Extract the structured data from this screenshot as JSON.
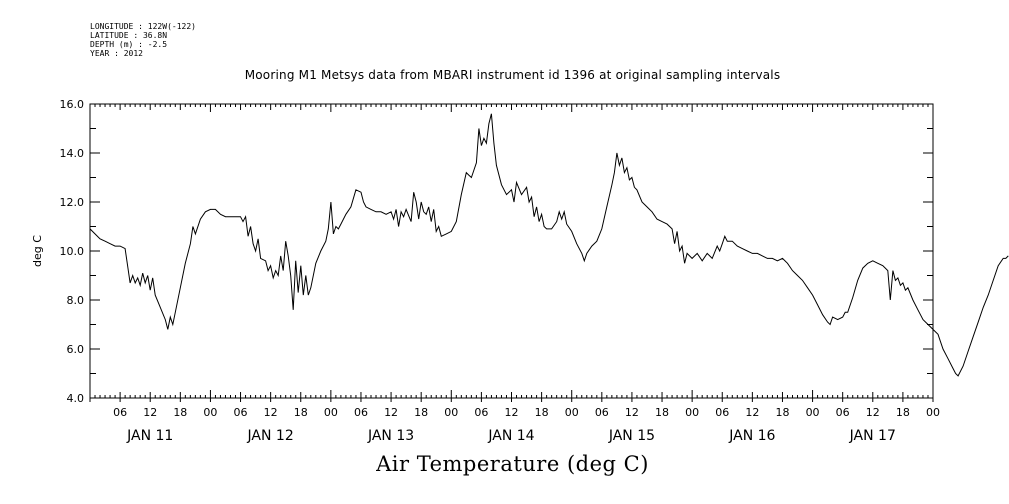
{
  "meta": {
    "longitude": "LONGITUDE : 122W(-122)",
    "latitude": "LATITUDE : 36.8N",
    "depth": "DEPTH (m) : -2.5",
    "year": "YEAR : 2012"
  },
  "chart_data": {
    "type": "line",
    "title": "Mooring M1 Metsys data from MBARI instrument id 1396 at original sampling intervals",
    "xlabel": "Air Temperature (deg C)",
    "ylabel": "deg C",
    "ylim": [
      4.0,
      16.0
    ],
    "xlim_hours": [
      0,
      168
    ],
    "y_ticks": [
      "4.0",
      "6.0",
      "8.0",
      "10.0",
      "12.0",
      "14.0",
      "16.0"
    ],
    "y_tick_values": [
      4,
      6,
      8,
      10,
      12,
      14,
      16
    ],
    "x_hour_labels": [
      "06",
      "12",
      "18",
      "00",
      "06",
      "12",
      "18",
      "00",
      "06",
      "12",
      "18",
      "00",
      "06",
      "12",
      "18",
      "00",
      "06",
      "12",
      "18",
      "00",
      "06",
      "12",
      "18",
      "00",
      "06",
      "12",
      "18",
      "00"
    ],
    "x_day_labels": [
      "JAN 11",
      "JAN 12",
      "JAN 13",
      "JAN 14",
      "JAN 15",
      "JAN 16",
      "JAN 17"
    ],
    "grid": false,
    "color": "#000000",
    "series": [
      {
        "name": "",
        "points": [
          [
            0,
            10.9
          ],
          [
            1,
            10.7
          ],
          [
            2,
            10.5
          ],
          [
            3,
            10.4
          ],
          [
            4,
            10.3
          ],
          [
            5,
            10.2
          ],
          [
            6,
            10.2
          ],
          [
            7,
            10.1
          ],
          [
            7.5,
            9.4
          ],
          [
            8,
            8.7
          ],
          [
            8.5,
            9.0
          ],
          [
            9,
            8.7
          ],
          [
            9.5,
            8.9
          ],
          [
            10,
            8.6
          ],
          [
            10.5,
            9.1
          ],
          [
            11,
            8.7
          ],
          [
            11.5,
            9.0
          ],
          [
            12,
            8.4
          ],
          [
            12.5,
            8.9
          ],
          [
            13,
            8.2
          ],
          [
            14,
            7.7
          ],
          [
            15,
            7.2
          ],
          [
            15.5,
            6.8
          ],
          [
            16,
            7.3
          ],
          [
            16.5,
            7.0
          ],
          [
            17,
            7.5
          ],
          [
            18,
            8.5
          ],
          [
            19,
            9.5
          ],
          [
            20,
            10.3
          ],
          [
            20.5,
            11.0
          ],
          [
            21,
            10.7
          ],
          [
            22,
            11.3
          ],
          [
            23,
            11.6
          ],
          [
            24,
            11.7
          ],
          [
            25,
            11.7
          ],
          [
            26,
            11.5
          ],
          [
            27,
            11.4
          ],
          [
            28,
            11.4
          ],
          [
            29,
            11.4
          ],
          [
            30,
            11.4
          ],
          [
            30.5,
            11.2
          ],
          [
            31,
            11.4
          ],
          [
            31.5,
            10.6
          ],
          [
            32,
            11.0
          ],
          [
            32.5,
            10.3
          ],
          [
            33,
            10.0
          ],
          [
            33.5,
            10.5
          ],
          [
            34,
            9.7
          ],
          [
            35,
            9.6
          ],
          [
            35.5,
            9.2
          ],
          [
            36,
            9.4
          ],
          [
            36.5,
            8.9
          ],
          [
            37,
            9.2
          ],
          [
            37.5,
            9.0
          ],
          [
            38,
            9.8
          ],
          [
            38.5,
            9.2
          ],
          [
            39,
            10.4
          ],
          [
            39.5,
            9.8
          ],
          [
            40,
            9.0
          ],
          [
            40.5,
            7.6
          ],
          [
            41,
            9.6
          ],
          [
            41.5,
            8.3
          ],
          [
            42,
            9.4
          ],
          [
            42.5,
            8.2
          ],
          [
            43,
            9.0
          ],
          [
            43.5,
            8.2
          ],
          [
            44,
            8.5
          ],
          [
            45,
            9.5
          ],
          [
            46,
            10.0
          ],
          [
            47,
            10.4
          ],
          [
            47.5,
            10.9
          ],
          [
            48,
            12.0
          ],
          [
            48.5,
            10.7
          ],
          [
            49,
            11.0
          ],
          [
            49.5,
            10.9
          ],
          [
            50,
            11.1
          ],
          [
            51,
            11.5
          ],
          [
            52,
            11.8
          ],
          [
            53,
            12.5
          ],
          [
            54,
            12.4
          ],
          [
            54.5,
            12.0
          ],
          [
            55,
            11.8
          ],
          [
            56,
            11.7
          ],
          [
            57,
            11.6
          ],
          [
            58,
            11.6
          ],
          [
            59,
            11.5
          ],
          [
            60,
            11.6
          ],
          [
            60.5,
            11.3
          ],
          [
            61,
            11.7
          ],
          [
            61.5,
            11.0
          ],
          [
            62,
            11.6
          ],
          [
            62.5,
            11.4
          ],
          [
            63,
            11.7
          ],
          [
            64,
            11.2
          ],
          [
            64.5,
            12.4
          ],
          [
            65,
            12.0
          ],
          [
            65.5,
            11.3
          ],
          [
            66,
            12.0
          ],
          [
            66.5,
            11.6
          ],
          [
            67,
            11.5
          ],
          [
            67.5,
            11.8
          ],
          [
            68,
            11.2
          ],
          [
            68.5,
            11.7
          ],
          [
            69,
            10.8
          ],
          [
            69.5,
            11.0
          ],
          [
            70,
            10.6
          ],
          [
            71,
            10.7
          ],
          [
            72,
            10.8
          ],
          [
            73,
            11.2
          ],
          [
            74,
            12.3
          ],
          [
            75,
            13.2
          ],
          [
            75.5,
            13.1
          ],
          [
            76,
            13.0
          ],
          [
            77,
            13.6
          ],
          [
            77.5,
            15.0
          ],
          [
            78,
            14.3
          ],
          [
            78.5,
            14.6
          ],
          [
            79,
            14.4
          ],
          [
            79.5,
            15.2
          ],
          [
            80,
            15.6
          ],
          [
            80.5,
            14.4
          ],
          [
            81,
            13.5
          ],
          [
            82,
            12.7
          ],
          [
            83,
            12.3
          ],
          [
            84,
            12.5
          ],
          [
            84.5,
            12.0
          ],
          [
            85,
            12.8
          ],
          [
            86,
            12.3
          ],
          [
            87,
            12.6
          ],
          [
            87.5,
            12.0
          ],
          [
            88,
            12.2
          ],
          [
            88.5,
            11.4
          ],
          [
            89,
            11.8
          ],
          [
            89.5,
            11.2
          ],
          [
            90,
            11.5
          ],
          [
            90.5,
            11.0
          ],
          [
            91,
            10.9
          ],
          [
            92,
            10.9
          ],
          [
            93,
            11.2
          ],
          [
            93.5,
            11.6
          ],
          [
            94,
            11.3
          ],
          [
            94.5,
            11.6
          ],
          [
            95,
            11.1
          ],
          [
            96,
            10.8
          ],
          [
            97,
            10.3
          ],
          [
            98,
            9.9
          ],
          [
            98.5,
            9.6
          ],
          [
            99,
            9.9
          ],
          [
            100,
            10.2
          ],
          [
            101,
            10.4
          ],
          [
            102,
            10.9
          ],
          [
            103,
            11.8
          ],
          [
            104,
            12.7
          ],
          [
            104.5,
            13.2
          ],
          [
            105,
            14.0
          ],
          [
            105.5,
            13.5
          ],
          [
            106,
            13.8
          ],
          [
            106.5,
            13.2
          ],
          [
            107,
            13.4
          ],
          [
            107.5,
            12.9
          ],
          [
            108,
            13.0
          ],
          [
            108.5,
            12.6
          ],
          [
            109,
            12.5
          ],
          [
            110,
            12.0
          ],
          [
            111,
            11.8
          ],
          [
            112,
            11.6
          ],
          [
            113,
            11.3
          ],
          [
            114,
            11.2
          ],
          [
            115,
            11.1
          ],
          [
            116,
            10.9
          ],
          [
            116.5,
            10.3
          ],
          [
            117,
            10.8
          ],
          [
            117.5,
            10.0
          ],
          [
            118,
            10.2
          ],
          [
            118.5,
            9.5
          ],
          [
            119,
            9.9
          ],
          [
            120,
            9.7
          ],
          [
            121,
            9.9
          ],
          [
            122,
            9.6
          ],
          [
            123,
            9.9
          ],
          [
            124,
            9.7
          ],
          [
            125,
            10.2
          ],
          [
            125.5,
            10.0
          ],
          [
            126,
            10.3
          ],
          [
            126.5,
            10.6
          ],
          [
            127,
            10.4
          ],
          [
            128,
            10.4
          ],
          [
            129,
            10.2
          ],
          [
            130,
            10.1
          ],
          [
            131,
            10.0
          ],
          [
            132,
            9.9
          ],
          [
            133,
            9.9
          ],
          [
            134,
            9.8
          ],
          [
            135,
            9.7
          ],
          [
            136,
            9.7
          ],
          [
            137,
            9.6
          ],
          [
            138,
            9.7
          ],
          [
            139,
            9.5
          ],
          [
            140,
            9.2
          ],
          [
            141,
            9.0
          ],
          [
            142,
            8.8
          ],
          [
            143,
            8.5
          ],
          [
            144,
            8.2
          ],
          [
            145,
            7.8
          ],
          [
            146,
            7.4
          ],
          [
            147,
            7.1
          ],
          [
            147.5,
            7.0
          ],
          [
            148,
            7.3
          ],
          [
            149,
            7.2
          ],
          [
            150,
            7.3
          ],
          [
            150.5,
            7.5
          ],
          [
            151,
            7.5
          ],
          [
            152,
            8.1
          ],
          [
            153,
            8.8
          ],
          [
            154,
            9.3
          ],
          [
            155,
            9.5
          ],
          [
            156,
            9.6
          ],
          [
            157,
            9.5
          ],
          [
            158,
            9.4
          ],
          [
            158.5,
            9.3
          ],
          [
            159,
            9.2
          ],
          [
            159.5,
            8.0
          ],
          [
            160,
            9.2
          ],
          [
            160.5,
            8.8
          ],
          [
            161,
            8.9
          ],
          [
            161.5,
            8.6
          ],
          [
            162,
            8.7
          ],
          [
            162.5,
            8.4
          ],
          [
            163,
            8.5
          ],
          [
            164,
            8.0
          ],
          [
            165,
            7.6
          ],
          [
            166,
            7.2
          ],
          [
            167,
            7.0
          ],
          [
            168,
            6.8
          ],
          [
            169,
            6.6
          ],
          [
            170,
            6.0
          ],
          [
            171,
            5.6
          ],
          [
            172,
            5.2
          ],
          [
            172.5,
            5.0
          ],
          [
            173,
            4.9
          ],
          [
            174,
            5.3
          ],
          [
            175,
            5.9
          ],
          [
            176,
            6.5
          ],
          [
            177,
            7.1
          ],
          [
            178,
            7.7
          ],
          [
            179,
            8.2
          ],
          [
            180,
            8.8
          ],
          [
            181,
            9.4
          ],
          [
            182,
            9.7
          ],
          [
            182.5,
            9.7
          ],
          [
            183,
            9.8
          ]
        ]
      }
    ]
  }
}
